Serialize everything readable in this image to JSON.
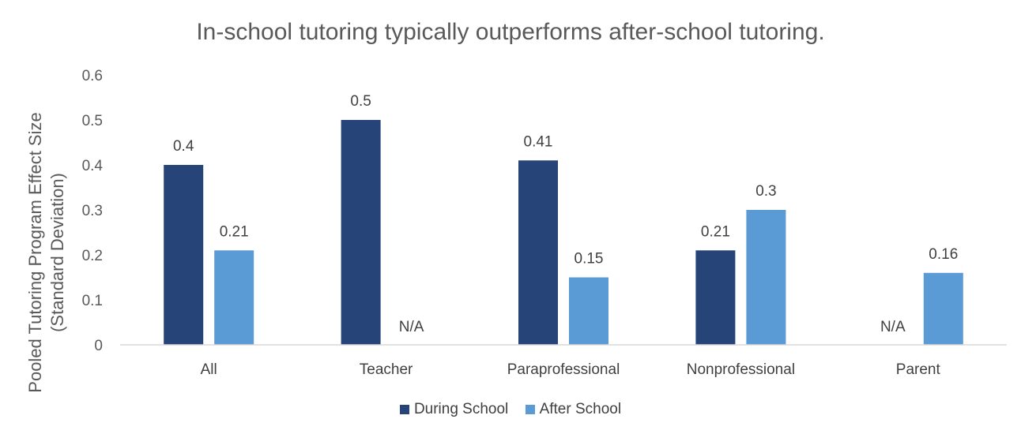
{
  "chart_data": {
    "type": "bar",
    "title": "In-school tutoring typically outperforms after-school tutoring.",
    "ylabel_lines": [
      "Pooled Tutoring Program Effect Size",
      "(Standard Deviation)"
    ],
    "xlabel": "",
    "categories": [
      "All",
      "Teacher",
      "Paraprofessional",
      "Nonprofessional",
      "Parent"
    ],
    "series": [
      {
        "name": "During School",
        "color": "#264478",
        "values": [
          0.4,
          0.5,
          0.41,
          0.21,
          null
        ],
        "labels": [
          "0.4",
          "0.5",
          "0.41",
          "0.21",
          "N/A"
        ]
      },
      {
        "name": "After School",
        "color": "#5B9BD5",
        "values": [
          0.21,
          null,
          0.15,
          0.3,
          0.16
        ],
        "labels": [
          "0.21",
          "N/A",
          "0.15",
          "0.3",
          "0.16"
        ]
      }
    ],
    "ylim": [
      0,
      0.6
    ],
    "yticks": [
      "0",
      "0.1",
      "0.2",
      "0.3",
      "0.4",
      "0.5",
      "0.6"
    ],
    "grid": false,
    "legend_position": "bottom"
  }
}
